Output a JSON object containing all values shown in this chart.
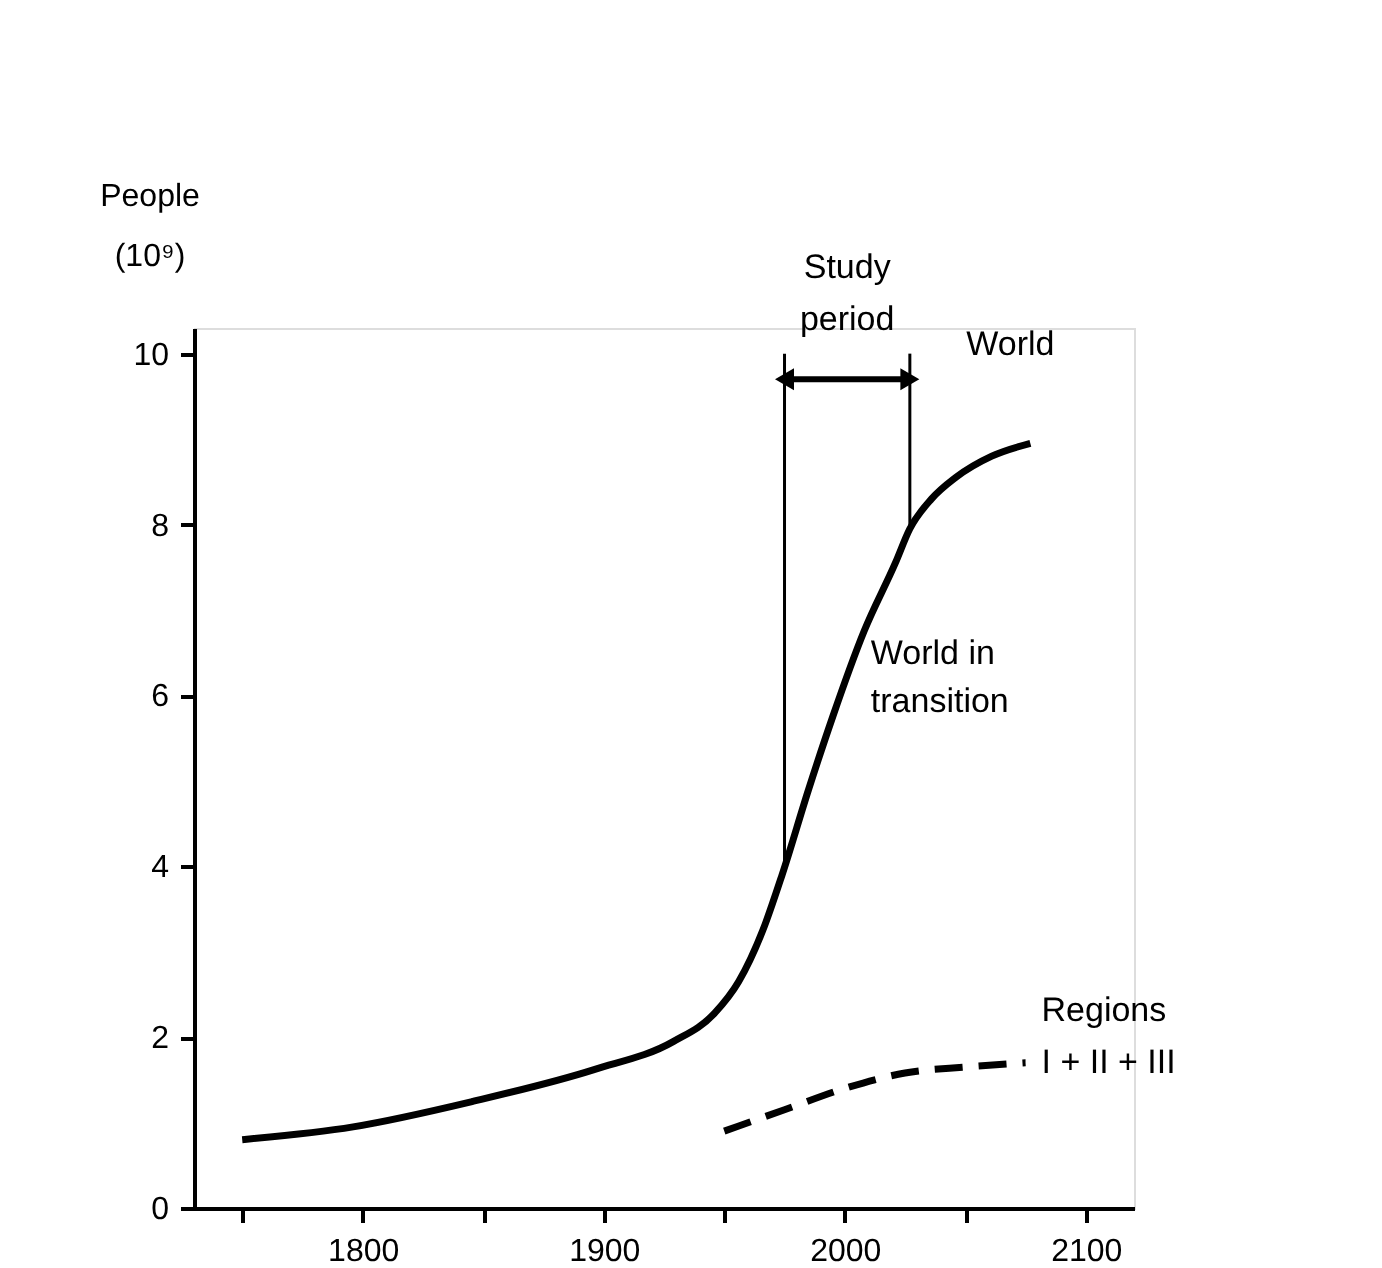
{
  "chart_data": {
    "type": "line",
    "ylabel": "People (10⁹)",
    "xlim": [
      1730,
      2120
    ],
    "ylim": [
      0,
      10.3
    ],
    "xticks": [
      {
        "value": 1750,
        "label": null
      },
      1800,
      {
        "value": 1850,
        "label": null
      },
      1900,
      {
        "value": 1950,
        "label": null
      },
      2000,
      {
        "value": 2050,
        "label": null
      },
      2100
    ],
    "yticks": [
      0,
      2,
      4,
      6,
      8,
      10
    ],
    "grid": false,
    "legend": false,
    "marker": "none",
    "series": [
      {
        "name": "World",
        "color": "#000000",
        "line_style": "solid",
        "x": [
          1750,
          1796,
          1846,
          1896,
          1929,
          1946,
          1956,
          1966,
          1974,
          1985,
          1995,
          2008,
          2021,
          2027,
          2036,
          2046,
          2061,
          2077
        ],
        "values": [
          0.8,
          0.95,
          1.25,
          1.62,
          1.95,
          2.28,
          2.65,
          3.25,
          3.9,
          4.9,
          5.75,
          6.75,
          7.55,
          7.95,
          8.3,
          8.55,
          8.8,
          8.95
        ]
      },
      {
        "name": "Regions I + II + III",
        "color": "#000000",
        "line_style": "dashed",
        "x": [
          1950,
          1975,
          2000,
          2025,
          2050,
          2075
        ],
        "values": [
          0.9,
          1.15,
          1.4,
          1.58,
          1.65,
          1.7
        ]
      }
    ],
    "ref_lines": [
      {
        "axis": "x",
        "value": 1975,
        "color": "#000000",
        "line_style": "solid"
      },
      {
        "axis": "x",
        "value": 2027,
        "color": "#000000",
        "line_style": "solid"
      }
    ],
    "annotations": [
      "Study period",
      "World in transition"
    ]
  }
}
